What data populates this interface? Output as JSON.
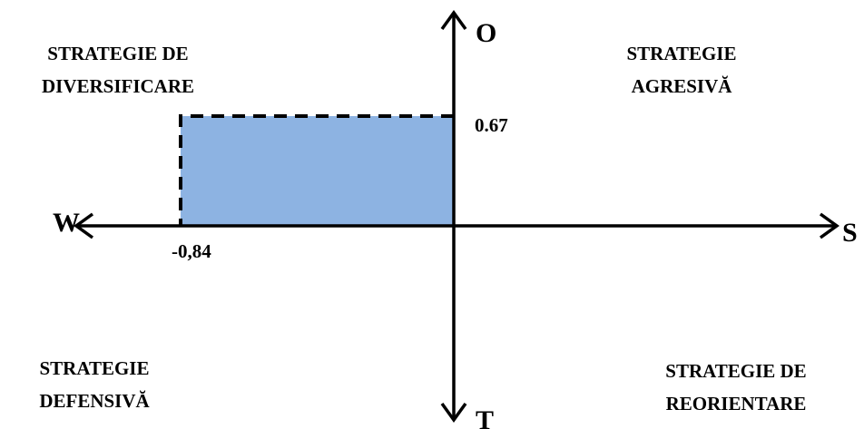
{
  "axes": {
    "top": "O",
    "bottom": "T",
    "left": "W",
    "right": "S"
  },
  "quadrants": {
    "top_left": [
      "STRATEGIE DE",
      "DIVERSIFICARE"
    ],
    "top_right": [
      "STRATEGIE",
      "AGRESIVĂ"
    ],
    "bottom_left": [
      "STRATEGIE",
      "DEFENSIVĂ"
    ],
    "bottom_right": [
      "STRATEGIE DE",
      "REORIENTARE"
    ]
  },
  "position": {
    "x_label": "-0,84",
    "y_label": "0.67",
    "x_value": -0.84,
    "y_value": 0.67
  },
  "colors": {
    "fill": "#8DB3E2",
    "axis": "#000000"
  }
}
